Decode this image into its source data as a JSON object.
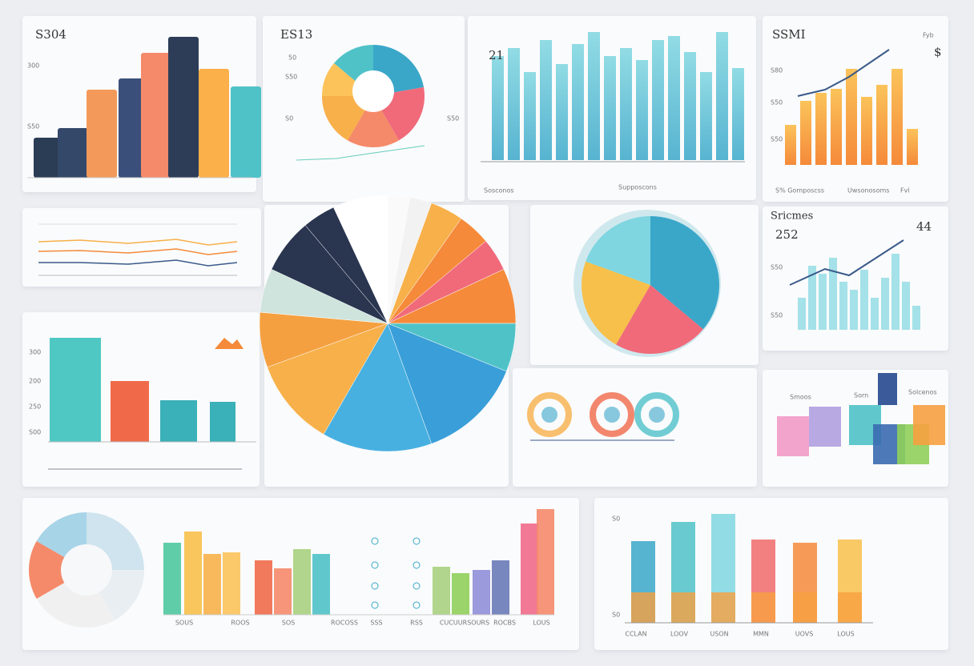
{
  "panels": {
    "top_left": {
      "title": "S304",
      "axis": [
        "300",
        "S50"
      ]
    },
    "donut": {
      "title": "ES13",
      "axis": [
        "50",
        "S50",
        "S0",
        "S50"
      ]
    },
    "teal_bars": {
      "title": "21",
      "labels": [
        "Sosconos",
        "Supposcons"
      ]
    },
    "orange_bars": {
      "title": "SSMI",
      "subtitle": "Fyb",
      "mark": "$",
      "axis": [
        "S80",
        "S50",
        "S50"
      ],
      "labels": [
        "S% Gomposcss",
        "Uwsonosoms",
        "Fvl"
      ]
    },
    "city": {
      "title": "Sricmes",
      "value": "252",
      "corner": "44",
      "axis": [
        "S50",
        "S50"
      ]
    },
    "mid_left": {
      "axis": [
        "300",
        "200",
        "250",
        "S00"
      ]
    },
    "bottom_left": {
      "labels": [
        "SOUS",
        "ROOS",
        "SOS",
        "ROCOSS",
        "SSS",
        "RSS",
        "CUCUURSOURS",
        "ROCBS",
        "LOUS"
      ]
    },
    "bottom_right": {
      "axis": [
        "S0",
        "S0"
      ],
      "labels": [
        "CCLAN",
        "LOOV",
        "USON",
        "MMN",
        "UOVS",
        "LOUS"
      ]
    },
    "blocks": {
      "labels": [
        "Smoos",
        "Sorn",
        "Solcenos"
      ]
    }
  }
}
